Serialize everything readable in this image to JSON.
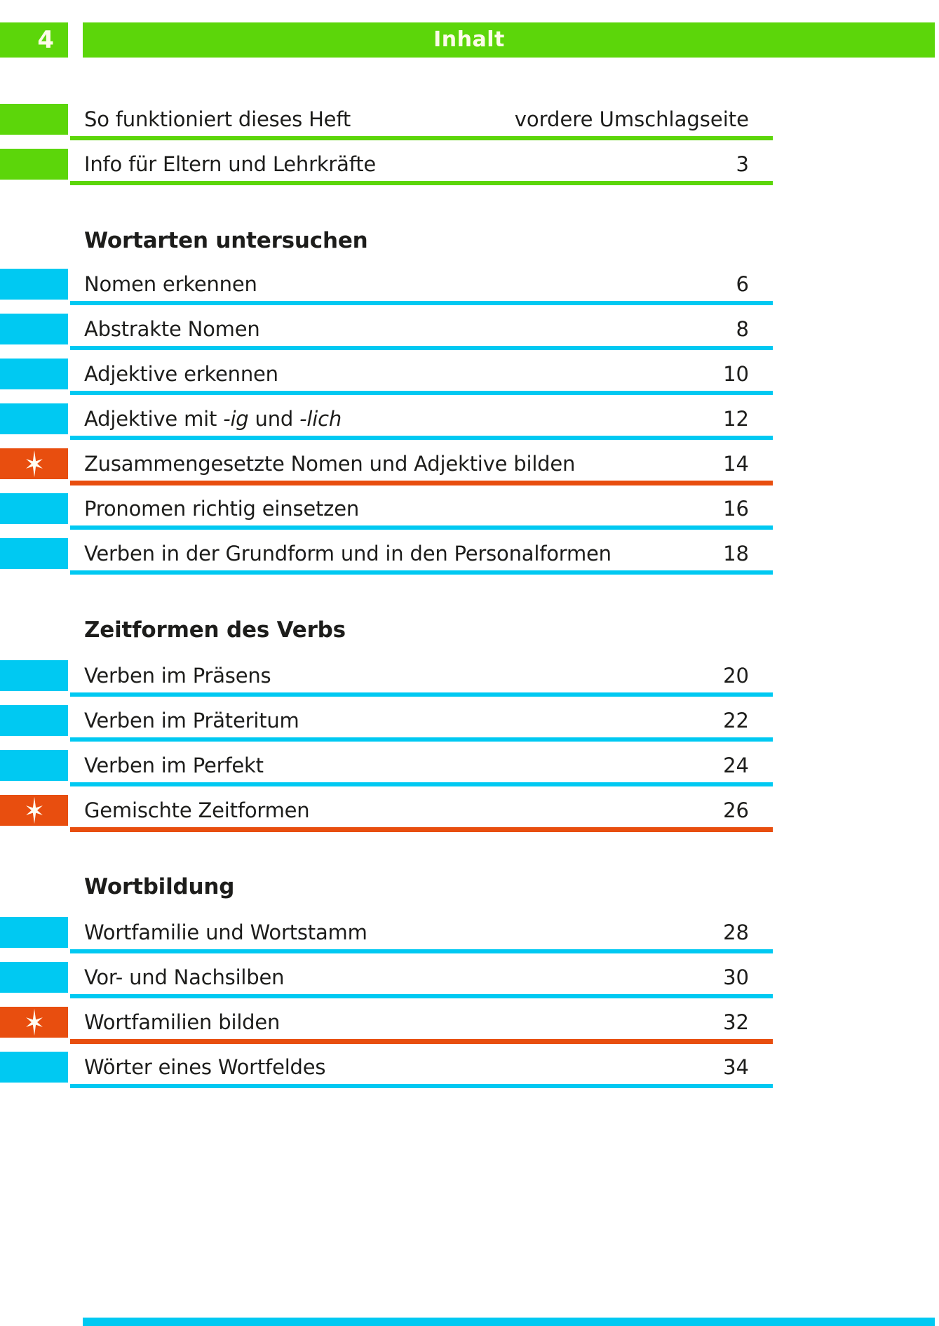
{
  "page": {
    "number": "4",
    "header_title": "Inhalt"
  },
  "colors": {
    "green": "#5cd60a",
    "cyan": "#00c9f2",
    "orange": "#e84e0f",
    "ink": "#1d1d1b"
  },
  "icons": {
    "star": "sparkle-star-icon"
  },
  "front_items": [
    {
      "label": "So funktioniert dieses Heft",
      "page": "vordere Umschlagseite",
      "color": "green"
    },
    {
      "label": "Info für Eltern und Lehrkräfte",
      "page": "3",
      "color": "green"
    }
  ],
  "sections": [
    {
      "heading": "Wortarten untersuchen",
      "items": [
        {
          "label": "Nomen erkennen",
          "page": "6",
          "color": "cyan"
        },
        {
          "label": "Abstrakte Nomen",
          "page": "8",
          "color": "cyan"
        },
        {
          "label": "Adjektive erkennen",
          "page": "10",
          "color": "cyan"
        },
        {
          "label": "Adjektive mit -ig und -lich",
          "parts": [
            {
              "t": "Adjektive mit "
            },
            {
              "t": "-ig",
              "i": true
            },
            {
              "t": " und "
            },
            {
              "t": "-lich",
              "i": true
            }
          ],
          "page": "12",
          "color": "cyan"
        },
        {
          "label": "Zusammengesetzte Nomen und Adjektive bilden",
          "page": "14",
          "color": "orange",
          "star": true
        },
        {
          "label": "Pronomen richtig einsetzen",
          "page": "16",
          "color": "cyan"
        },
        {
          "label": "Verben in der Grundform und in den Personalformen",
          "page": "18",
          "color": "cyan"
        }
      ]
    },
    {
      "heading": "Zeitformen des Verbs",
      "items": [
        {
          "label": "Verben im Präsens",
          "page": "20",
          "color": "cyan"
        },
        {
          "label": "Verben im Präteritum",
          "page": "22",
          "color": "cyan"
        },
        {
          "label": "Verben im Perfekt",
          "page": "24",
          "color": "cyan"
        },
        {
          "label": "Gemischte Zeitformen",
          "page": "26",
          "color": "orange",
          "star": true
        }
      ]
    },
    {
      "heading": "Wortbildung",
      "items": [
        {
          "label": "Wortfamilie und Wortstamm",
          "page": "28",
          "color": "cyan"
        },
        {
          "label": "Vor- und Nachsilben",
          "page": "30",
          "color": "cyan"
        },
        {
          "label": "Wortfamilien bilden",
          "page": "32",
          "color": "orange",
          "star": true
        },
        {
          "label": "Wörter eines Wortfeldes",
          "page": "34",
          "color": "cyan"
        }
      ]
    }
  ],
  "footer": {
    "bottom_bar_visible": true
  }
}
